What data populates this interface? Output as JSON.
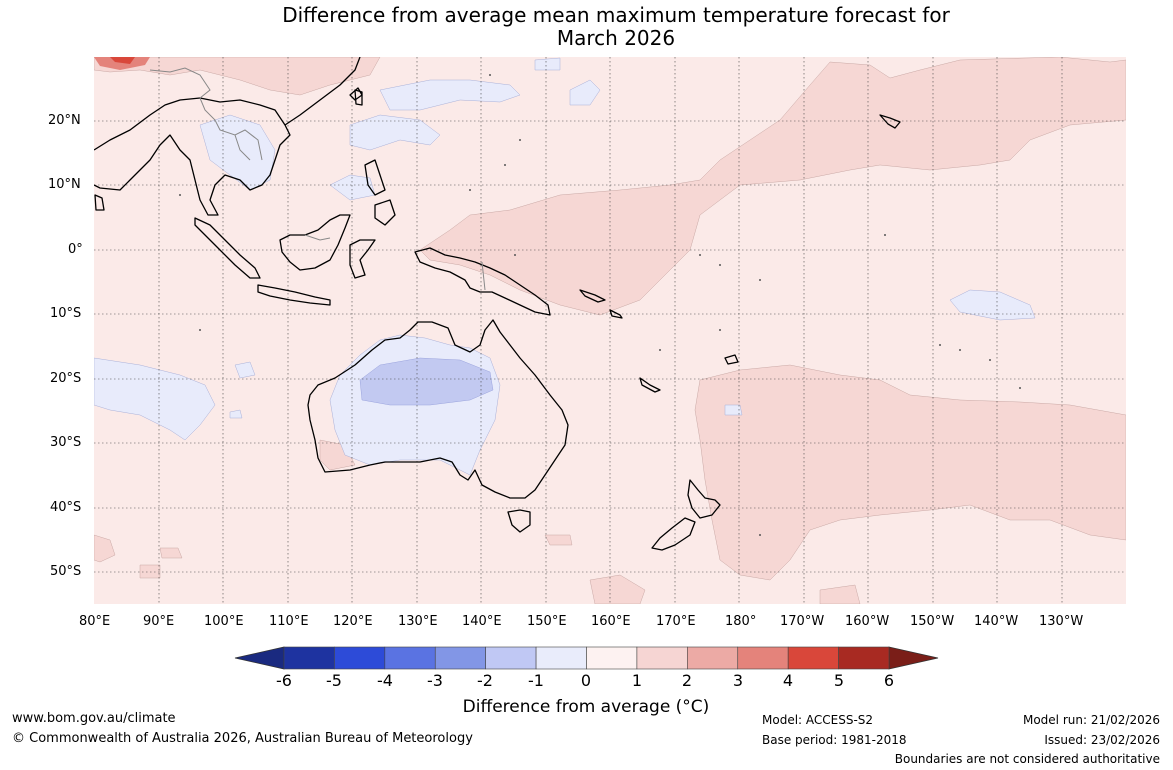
{
  "title": {
    "line1": "Difference from average mean maximum temperature forecast for",
    "line2": "March 2026"
  },
  "map": {
    "lon_labels": [
      "80°E",
      "90°E",
      "100°E",
      "110°E",
      "120°E",
      "130°E",
      "140°E",
      "150°E",
      "160°E",
      "170°E",
      "180°",
      "170°W",
      "160°W",
      "150°W",
      "140°W",
      "130°W"
    ],
    "lat_labels": [
      "20°N",
      "10°N",
      "0°",
      "10°S",
      "20°S",
      "30°S",
      "40°S",
      "50°S"
    ],
    "background_color": "#fbeae8"
  },
  "colorbar": {
    "ticks": [
      "-6",
      "-5",
      "-4",
      "-3",
      "-2",
      "-1",
      "0",
      "1",
      "2",
      "3",
      "4",
      "5",
      "6"
    ],
    "colors": [
      "#1e33a0",
      "#2d4bd8",
      "#5a73e2",
      "#8296e6",
      "#c0c8f4",
      "#e9ecfb",
      "#fdf2f1",
      "#f6d5d3",
      "#ecaaa5",
      "#e4837b",
      "#d9473a",
      "#a82a22"
    ],
    "low_extend_color": "#1a2a80",
    "high_extend_color": "#7a1e18",
    "label": "Difference from average (°C)"
  },
  "footer": {
    "url": "www.bom.gov.au/climate",
    "copyright": "© Commonwealth of Australia 2026, Australian Bureau of Meteorology",
    "model": "Model: ACCESS-S2",
    "base_period": "Base period: 1981-2018",
    "model_run": "Model run: 21/02/2026",
    "issued": "Issued: 23/02/2026",
    "disclaimer": "Boundaries are not considered authoritative"
  }
}
